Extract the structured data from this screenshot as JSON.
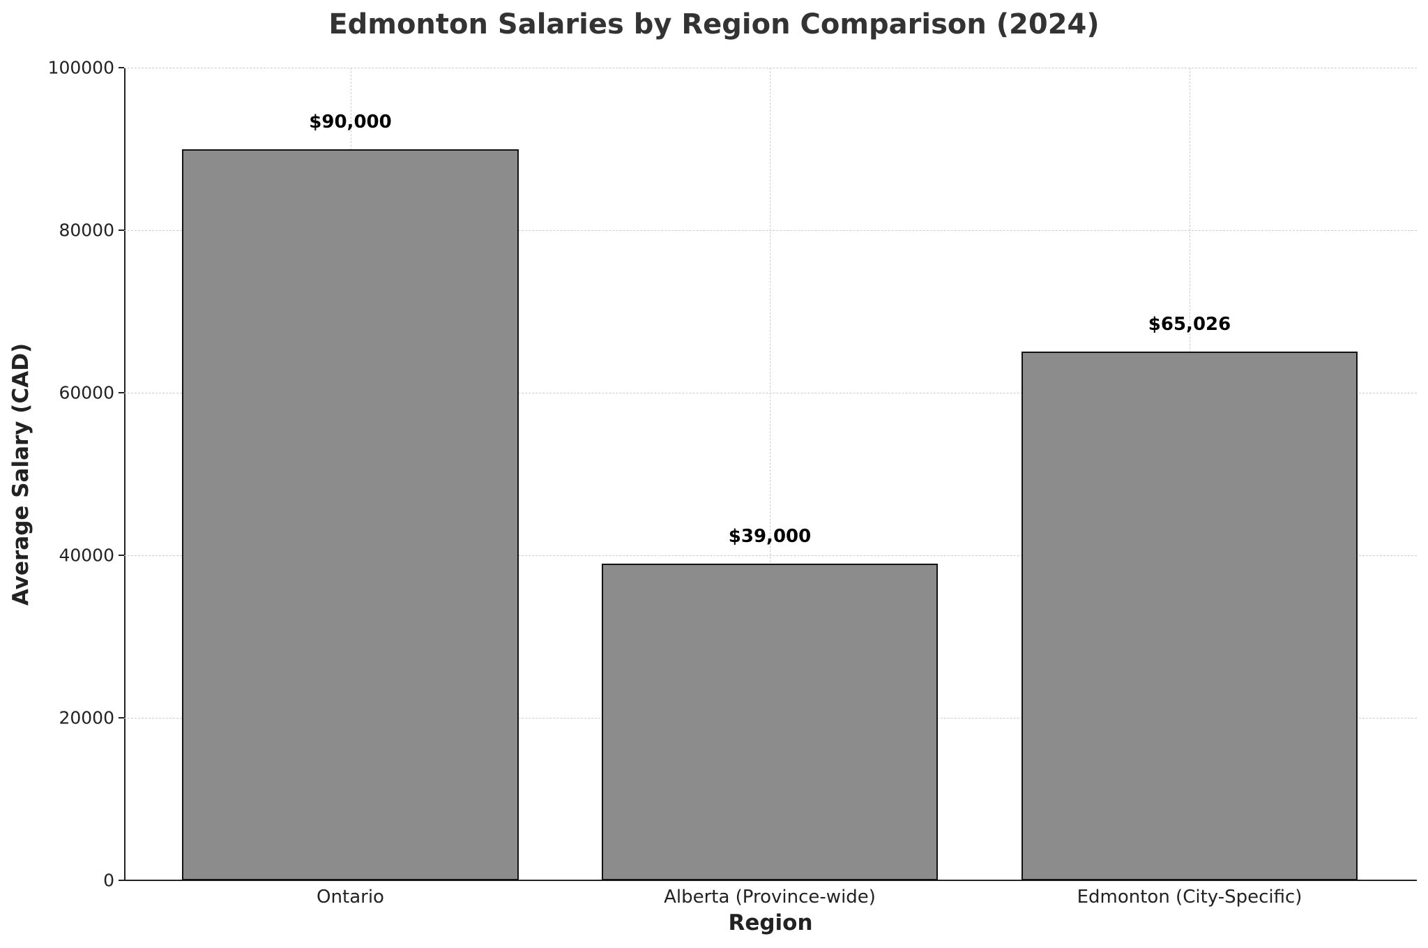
{
  "chart_data": {
    "type": "bar",
    "title": "Edmonton Salaries by Region Comparison (2024)",
    "xlabel": "Region",
    "ylabel": "Average Salary (CAD)",
    "categories": [
      "Ontario",
      "Alberta (Province-wide)",
      "Edmonton (City-Specific)"
    ],
    "values": [
      90000,
      39000,
      65026
    ],
    "data_labels": [
      "$90,000",
      "$39,000",
      "$65,026"
    ],
    "ylim": [
      0,
      100000
    ],
    "yticks": [
      "0",
      "20000",
      "40000",
      "60000",
      "80000",
      "100000"
    ],
    "grid": true,
    "bar_color": "#8c8c8c",
    "edge_color": "#111111"
  }
}
